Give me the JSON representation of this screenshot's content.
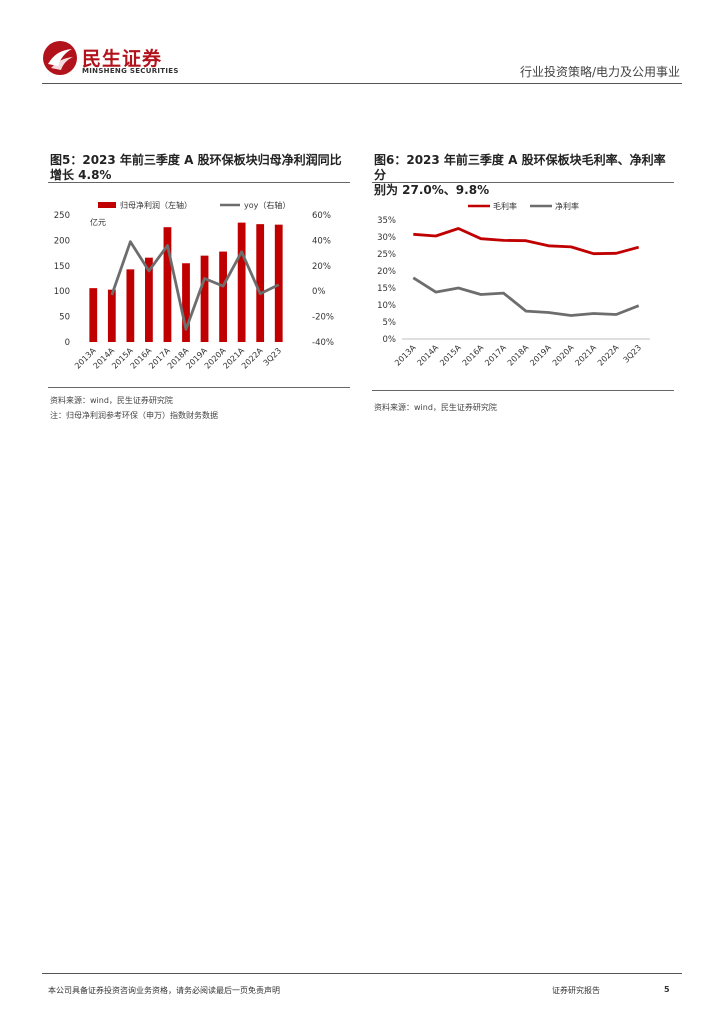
{
  "header": {
    "brand_cn": "民生证券",
    "brand_en": "MINSHENG SECURITIES",
    "report_category": "行业投资策略/电力及公用事业"
  },
  "colors": {
    "red": "#c00000",
    "gray": "#6d6d6d",
    "brand": "#b2121b"
  },
  "figures": [
    {
      "title": "图5：2023 年前三季度 A 股环保板块归母净利润同比增长 4.8%",
      "title_line1": "图5：2023 年前三季度 A 股环保板块归母净利润同比",
      "title_line2": "增长 4.8%",
      "source": "资料来源：wind，民生证券研究院",
      "note": "注：归母净利润参考环保（申万）指数财务数据"
    },
    {
      "title": "图6：2023 年前三季度 A 股环保板块毛利率、净利率分别为 27.0%、9.8%",
      "title_line1": "图6：2023 年前三季度 A 股环保板块毛利率、净利率分",
      "title_line2": "别为 27.0%、9.8%",
      "source": "资料来源：wind，民生证券研究院"
    }
  ],
  "chart_data": [
    {
      "type": "bar",
      "title": "图5：2023 年前三季度 A 股环保板块归母净利润同比增长 4.8%",
      "unit_label": "亿元",
      "categories": [
        "2013A",
        "2014A",
        "2015A",
        "2016A",
        "2017A",
        "2018A",
        "2019A",
        "2020A",
        "2021A",
        "2022A",
        "3Q23"
      ],
      "series": [
        {
          "name": "归母净利润（左轴）",
          "type": "bar",
          "axis": "left",
          "values": [
            106,
            103,
            143,
            166,
            226,
            155,
            170,
            178,
            235,
            232,
            231
          ]
        },
        {
          "name": "yoy（右轴）",
          "type": "line",
          "axis": "right",
          "values": [
            null,
            -3,
            39,
            16,
            36,
            -30,
            10,
            4,
            31,
            -2,
            5
          ]
        }
      ],
      "ylim_left": [
        0,
        250
      ],
      "yticks_left": [
        "0",
        "50",
        "100",
        "150",
        "200",
        "250"
      ],
      "ylim_right": [
        -40,
        60
      ],
      "yticks_right": [
        "-40%",
        "-20%",
        "0%",
        "20%",
        "40%",
        "60%"
      ],
      "legend_position": "top"
    },
    {
      "type": "line",
      "title": "图6：2023 年前三季度 A 股环保板块毛利率、净利率分别为 27.0%、9.8%",
      "categories": [
        "2013A",
        "2014A",
        "2015A",
        "2016A",
        "2017A",
        "2018A",
        "2019A",
        "2020A",
        "2021A",
        "2022A",
        "3Q23"
      ],
      "series": [
        {
          "name": "毛利率",
          "values": [
            30.8,
            30.3,
            32.5,
            29.5,
            29.0,
            28.9,
            27.4,
            27.1,
            25.1,
            25.2,
            27.0
          ]
        },
        {
          "name": "净利率",
          "values": [
            18.0,
            13.8,
            15.0,
            13.1,
            13.5,
            8.2,
            7.8,
            6.9,
            7.5,
            7.2,
            9.8
          ]
        }
      ],
      "ylim": [
        0,
        35
      ],
      "yticks": [
        "0%",
        "5%",
        "10%",
        "15%",
        "20%",
        "25%",
        "30%",
        "35%"
      ],
      "legend_position": "top"
    }
  ],
  "footer": {
    "disclaimer": "本公司具备证券投资咨询业务资格，请务必阅读最后一页免责声明",
    "report_type": "证券研究报告",
    "page_number": "5"
  }
}
